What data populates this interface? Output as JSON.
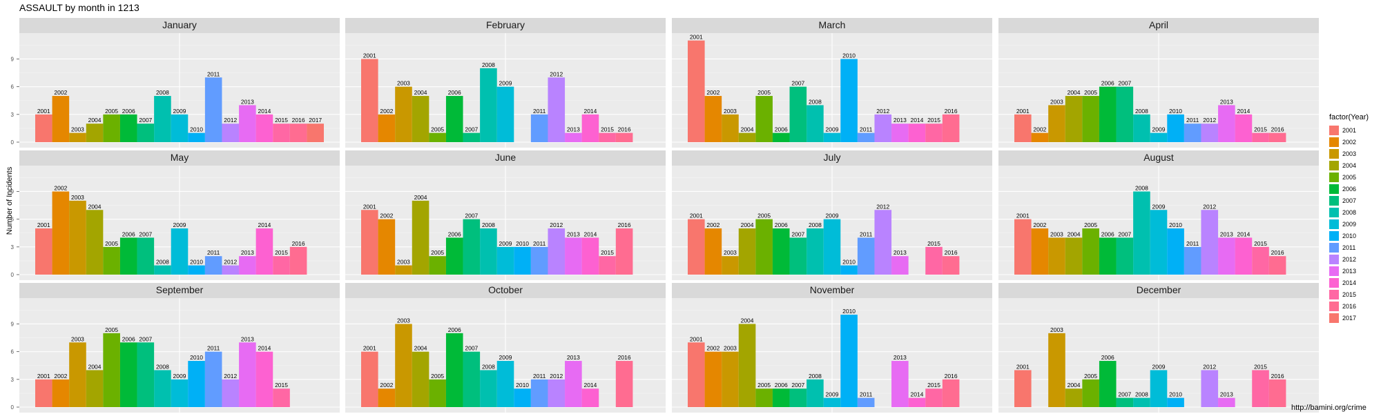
{
  "chart_data": {
    "type": "bar",
    "title": "ASSAULT by month in 1213",
    "ylabel": "Number of Incidents",
    "xlabel": "",
    "ylim": [
      0,
      11.5
    ],
    "y_ticks": [
      0,
      3,
      6,
      9
    ],
    "legend_title": "factor(Year)",
    "legend_position": "right",
    "caption": "http://bamini.org/crime",
    "colors": {
      "2001": "#F8766D",
      "2002": "#E58700",
      "2003": "#C99800",
      "2004": "#A3A500",
      "2005": "#6BB100",
      "2006": "#00BA38",
      "2007": "#00BF7D",
      "2008": "#00C0AF",
      "2009": "#00BCD8",
      "2010": "#00B0F6",
      "2011": "#619CFF",
      "2012": "#B983FF",
      "2013": "#E76BF3",
      "2014": "#FD61D1",
      "2015": "#FF67A4",
      "2016": "#FF6C91",
      "2017": "#F8766D"
    },
    "legend_years": [
      "2001",
      "2002",
      "2003",
      "2004",
      "2005",
      "2006",
      "2007",
      "2008",
      "2009",
      "2010",
      "2011",
      "2012",
      "2013",
      "2014",
      "2015",
      "2016",
      "2017"
    ],
    "panels": [
      {
        "month": "January",
        "bars": [
          {
            "year": "2001",
            "value": 3
          },
          {
            "year": "2002",
            "value": 5
          },
          {
            "year": "2003",
            "value": 1
          },
          {
            "year": "2004",
            "value": 2
          },
          {
            "year": "2005",
            "value": 3
          },
          {
            "year": "2006",
            "value": 3
          },
          {
            "year": "2007",
            "value": 2
          },
          {
            "year": "2008",
            "value": 5
          },
          {
            "year": "2009",
            "value": 3
          },
          {
            "year": "2010",
            "value": 1
          },
          {
            "year": "2011",
            "value": 7
          },
          {
            "year": "2012",
            "value": 2
          },
          {
            "year": "2013",
            "value": 4
          },
          {
            "year": "2014",
            "value": 3
          },
          {
            "year": "2015",
            "value": 2
          },
          {
            "year": "2016",
            "value": 2
          },
          {
            "year": "2017",
            "value": 2
          }
        ]
      },
      {
        "month": "February",
        "bars": [
          {
            "year": "2001",
            "value": 9
          },
          {
            "year": "2002",
            "value": 3
          },
          {
            "year": "2003",
            "value": 6
          },
          {
            "year": "2004",
            "value": 5
          },
          {
            "year": "2005",
            "value": 1
          },
          {
            "year": "2006",
            "value": 5
          },
          {
            "year": "2007",
            "value": 1
          },
          {
            "year": "2008",
            "value": 8
          },
          {
            "year": "2009",
            "value": 6
          },
          {
            "year": "2011",
            "value": 3
          },
          {
            "year": "2012",
            "value": 7
          },
          {
            "year": "2013",
            "value": 1
          },
          {
            "year": "2014",
            "value": 3
          },
          {
            "year": "2015",
            "value": 1
          },
          {
            "year": "2016",
            "value": 1
          }
        ]
      },
      {
        "month": "March",
        "bars": [
          {
            "year": "2001",
            "value": 11
          },
          {
            "year": "2002",
            "value": 5
          },
          {
            "year": "2003",
            "value": 3
          },
          {
            "year": "2004",
            "value": 1
          },
          {
            "year": "2005",
            "value": 5
          },
          {
            "year": "2006",
            "value": 1
          },
          {
            "year": "2007",
            "value": 6
          },
          {
            "year": "2008",
            "value": 4
          },
          {
            "year": "2009",
            "value": 1
          },
          {
            "year": "2010",
            "value": 9
          },
          {
            "year": "2011",
            "value": 1
          },
          {
            "year": "2012",
            "value": 3
          },
          {
            "year": "2013",
            "value": 2
          },
          {
            "year": "2014",
            "value": 2
          },
          {
            "year": "2015",
            "value": 2
          },
          {
            "year": "2016",
            "value": 3
          }
        ]
      },
      {
        "month": "April",
        "bars": [
          {
            "year": "2001",
            "value": 3
          },
          {
            "year": "2002",
            "value": 1
          },
          {
            "year": "2003",
            "value": 4
          },
          {
            "year": "2004",
            "value": 5
          },
          {
            "year": "2005",
            "value": 5
          },
          {
            "year": "2006",
            "value": 6
          },
          {
            "year": "2007",
            "value": 6
          },
          {
            "year": "2008",
            "value": 3
          },
          {
            "year": "2009",
            "value": 1
          },
          {
            "year": "2010",
            "value": 3
          },
          {
            "year": "2011",
            "value": 2
          },
          {
            "year": "2012",
            "value": 2
          },
          {
            "year": "2013",
            "value": 4
          },
          {
            "year": "2014",
            "value": 3
          },
          {
            "year": "2015",
            "value": 1
          },
          {
            "year": "2016",
            "value": 1
          }
        ]
      },
      {
        "month": "May",
        "bars": [
          {
            "year": "2001",
            "value": 5
          },
          {
            "year": "2002",
            "value": 9
          },
          {
            "year": "2003",
            "value": 8
          },
          {
            "year": "2004",
            "value": 7
          },
          {
            "year": "2005",
            "value": 3
          },
          {
            "year": "2006",
            "value": 4
          },
          {
            "year": "2007",
            "value": 4
          },
          {
            "year": "2008",
            "value": 1
          },
          {
            "year": "2009",
            "value": 5
          },
          {
            "year": "2010",
            "value": 1
          },
          {
            "year": "2011",
            "value": 2
          },
          {
            "year": "2012",
            "value": 1
          },
          {
            "year": "2013",
            "value": 2
          },
          {
            "year": "2014",
            "value": 5
          },
          {
            "year": "2015",
            "value": 2
          },
          {
            "year": "2016",
            "value": 3
          }
        ]
      },
      {
        "month": "June",
        "bars": [
          {
            "year": "2001",
            "value": 7
          },
          {
            "year": "2002",
            "value": 6
          },
          {
            "year": "2003",
            "value": 1
          },
          {
            "year": "2004",
            "value": 8
          },
          {
            "year": "2005",
            "value": 2
          },
          {
            "year": "2006",
            "value": 4
          },
          {
            "year": "2007",
            "value": 6
          },
          {
            "year": "2008",
            "value": 5
          },
          {
            "year": "2009",
            "value": 3
          },
          {
            "year": "2010",
            "value": 3
          },
          {
            "year": "2011",
            "value": 3
          },
          {
            "year": "2012",
            "value": 5
          },
          {
            "year": "2013",
            "value": 4
          },
          {
            "year": "2014",
            "value": 4
          },
          {
            "year": "2015",
            "value": 2
          },
          {
            "year": "2016",
            "value": 5
          }
        ]
      },
      {
        "month": "July",
        "bars": [
          {
            "year": "2001",
            "value": 6
          },
          {
            "year": "2002",
            "value": 5
          },
          {
            "year": "2003",
            "value": 2
          },
          {
            "year": "2004",
            "value": 5
          },
          {
            "year": "2005",
            "value": 6
          },
          {
            "year": "2006",
            "value": 5
          },
          {
            "year": "2007",
            "value": 4
          },
          {
            "year": "2008",
            "value": 5
          },
          {
            "year": "2009",
            "value": 6
          },
          {
            "year": "2010",
            "value": 1
          },
          {
            "year": "2011",
            "value": 4
          },
          {
            "year": "2012",
            "value": 7
          },
          {
            "year": "2013",
            "value": 2
          },
          {
            "year": "2015",
            "value": 3
          },
          {
            "year": "2016",
            "value": 2
          }
        ]
      },
      {
        "month": "August",
        "bars": [
          {
            "year": "2001",
            "value": 6
          },
          {
            "year": "2002",
            "value": 5
          },
          {
            "year": "2003",
            "value": 4
          },
          {
            "year": "2004",
            "value": 4
          },
          {
            "year": "2005",
            "value": 5
          },
          {
            "year": "2006",
            "value": 4
          },
          {
            "year": "2007",
            "value": 4
          },
          {
            "year": "2008",
            "value": 9
          },
          {
            "year": "2009",
            "value": 7
          },
          {
            "year": "2010",
            "value": 5
          },
          {
            "year": "2011",
            "value": 3
          },
          {
            "year": "2012",
            "value": 7
          },
          {
            "year": "2013",
            "value": 4
          },
          {
            "year": "2014",
            "value": 4
          },
          {
            "year": "2015",
            "value": 3
          },
          {
            "year": "2016",
            "value": 2
          }
        ]
      },
      {
        "month": "September",
        "bars": [
          {
            "year": "2001",
            "value": 3
          },
          {
            "year": "2002",
            "value": 3
          },
          {
            "year": "2003",
            "value": 7
          },
          {
            "year": "2004",
            "value": 4
          },
          {
            "year": "2005",
            "value": 8
          },
          {
            "year": "2006",
            "value": 7
          },
          {
            "year": "2007",
            "value": 7
          },
          {
            "year": "2008",
            "value": 4
          },
          {
            "year": "2009",
            "value": 3
          },
          {
            "year": "2010",
            "value": 5
          },
          {
            "year": "2011",
            "value": 6
          },
          {
            "year": "2012",
            "value": 3
          },
          {
            "year": "2013",
            "value": 7
          },
          {
            "year": "2014",
            "value": 6
          },
          {
            "year": "2015",
            "value": 2
          }
        ]
      },
      {
        "month": "October",
        "bars": [
          {
            "year": "2001",
            "value": 6
          },
          {
            "year": "2002",
            "value": 2
          },
          {
            "year": "2003",
            "value": 9
          },
          {
            "year": "2004",
            "value": 6
          },
          {
            "year": "2005",
            "value": 3
          },
          {
            "year": "2006",
            "value": 8
          },
          {
            "year": "2007",
            "value": 6
          },
          {
            "year": "2008",
            "value": 4
          },
          {
            "year": "2009",
            "value": 5
          },
          {
            "year": "2010",
            "value": 2
          },
          {
            "year": "2011",
            "value": 3
          },
          {
            "year": "2012",
            "value": 3
          },
          {
            "year": "2013",
            "value": 5
          },
          {
            "year": "2014",
            "value": 2
          },
          {
            "year": "2016",
            "value": 5
          }
        ]
      },
      {
        "month": "November",
        "bars": [
          {
            "year": "2001",
            "value": 7
          },
          {
            "year": "2002",
            "value": 6
          },
          {
            "year": "2003",
            "value": 6
          },
          {
            "year": "2004",
            "value": 9
          },
          {
            "year": "2005",
            "value": 2
          },
          {
            "year": "2006",
            "value": 2
          },
          {
            "year": "2007",
            "value": 2
          },
          {
            "year": "2008",
            "value": 3
          },
          {
            "year": "2009",
            "value": 1
          },
          {
            "year": "2010",
            "value": 10
          },
          {
            "year": "2011",
            "value": 1
          },
          {
            "year": "2013",
            "value": 5
          },
          {
            "year": "2014",
            "value": 1
          },
          {
            "year": "2015",
            "value": 2
          },
          {
            "year": "2016",
            "value": 3
          }
        ]
      },
      {
        "month": "December",
        "bars": [
          {
            "year": "2001",
            "value": 4
          },
          {
            "year": "2003",
            "value": 8
          },
          {
            "year": "2004",
            "value": 2
          },
          {
            "year": "2005",
            "value": 3
          },
          {
            "year": "2006",
            "value": 5
          },
          {
            "year": "2007",
            "value": 1
          },
          {
            "year": "2008",
            "value": 1
          },
          {
            "year": "2009",
            "value": 4
          },
          {
            "year": "2010",
            "value": 1
          },
          {
            "year": "2012",
            "value": 4
          },
          {
            "year": "2013",
            "value": 1
          },
          {
            "year": "2015",
            "value": 4
          },
          {
            "year": "2016",
            "value": 3
          }
        ]
      }
    ]
  }
}
